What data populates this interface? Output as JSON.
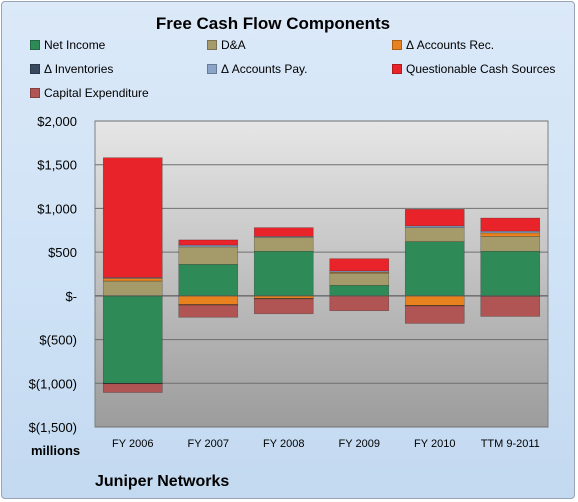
{
  "chart_data": {
    "type": "bar",
    "stacked": true,
    "title": "Free Cash Flow Components",
    "units_label": "millions",
    "footer": "Juniper Networks",
    "categories": [
      "FY 2006",
      "FY 2007",
      "FY 2008",
      "FY 2009",
      "FY 2010",
      "TTM 9-2011"
    ],
    "ylim": [
      -1500,
      2000
    ],
    "yticks": [
      2000,
      1500,
      1000,
      500,
      0,
      -500,
      -1000,
      -1500
    ],
    "ytick_labels": [
      "$2,000",
      "$1,500",
      "$1,000",
      "$500",
      "$-",
      "$(500)",
      "$(1,000)",
      "$(1,500)"
    ],
    "legend": "top",
    "grid": true,
    "series": [
      {
        "name": "Net Income",
        "color": "#2e8b57",
        "values": [
          -1000,
          360,
          510,
          120,
          620,
          510
        ]
      },
      {
        "name": "D&A",
        "color": "#a59a6a",
        "values": [
          170,
          200,
          160,
          140,
          160,
          170
        ]
      },
      {
        "name": "Δ Accounts Rec.",
        "color": "#e8821e",
        "values": [
          30,
          -100,
          -30,
          10,
          -110,
          40
        ]
      },
      {
        "name": "Δ Inventories",
        "color": "#3a4a5e",
        "values": [
          -5,
          -5,
          -5,
          0,
          -5,
          -5
        ]
      },
      {
        "name": "Δ Accounts Pay.",
        "color": "#8aa5c7",
        "values": [
          10,
          20,
          10,
          15,
          20,
          20
        ]
      },
      {
        "name": "Questionable Cash Sources",
        "color": "#e8242a",
        "values": [
          1370,
          60,
          100,
          140,
          190,
          150
        ]
      },
      {
        "name": "Capital Expenditure",
        "color": "#b05454",
        "values": [
          -100,
          -140,
          -170,
          -170,
          -200,
          -230
        ]
      }
    ]
  }
}
